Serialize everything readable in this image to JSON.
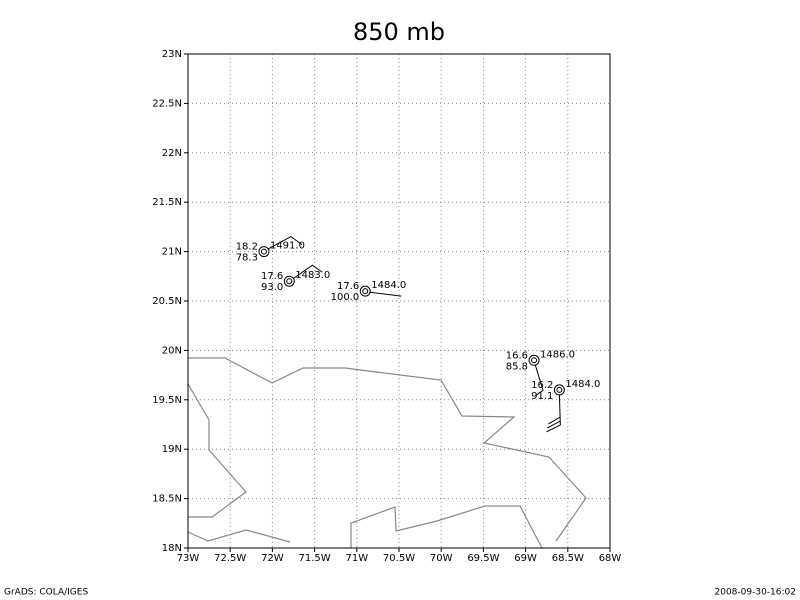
{
  "title": "850 mb",
  "map": {
    "xlim": [
      -73,
      -68
    ],
    "ylim": [
      18,
      23
    ],
    "xticks": [
      {
        "value": -73,
        "label": "73W"
      },
      {
        "value": -72.5,
        "label": "72.5W"
      },
      {
        "value": -72,
        "label": "72W"
      },
      {
        "value": -71.5,
        "label": "71.5W"
      },
      {
        "value": -71,
        "label": "71W"
      },
      {
        "value": -70.5,
        "label": "70.5W"
      },
      {
        "value": -70,
        "label": "70W"
      },
      {
        "value": -69.5,
        "label": "69.5W"
      },
      {
        "value": -69,
        "label": "69W"
      },
      {
        "value": -68.5,
        "label": "68.5W"
      },
      {
        "value": -68,
        "label": "68W"
      }
    ],
    "yticks": [
      {
        "value": 18,
        "label": "18N"
      },
      {
        "value": 18.5,
        "label": "18.5N"
      },
      {
        "value": 19,
        "label": "19N"
      },
      {
        "value": 19.5,
        "label": "19.5N"
      },
      {
        "value": 20,
        "label": "20N"
      },
      {
        "value": 20.5,
        "label": "20.5N"
      },
      {
        "value": 21,
        "label": "21N"
      },
      {
        "value": 21.5,
        "label": "21.5N"
      },
      {
        "value": 22,
        "label": "22N"
      },
      {
        "value": 22.5,
        "label": "22.5N"
      },
      {
        "value": 23,
        "label": "23N"
      }
    ],
    "grid": true
  },
  "stations": [
    {
      "lon": -72.1,
      "lat": 21.0,
      "temperature": "18.2",
      "humidity": "78.3",
      "height": "1491.0"
    },
    {
      "lon": -71.8,
      "lat": 20.7,
      "temperature": "17.6",
      "humidity": "93.0",
      "height": "1483.0"
    },
    {
      "lon": -70.9,
      "lat": 20.6,
      "temperature": "17.6",
      "humidity": "100.0",
      "height": "1484.0"
    },
    {
      "lon": -68.9,
      "lat": 19.9,
      "temperature": "16.6",
      "humidity": "85.8",
      "height": "1486.0"
    },
    {
      "lon": -68.6,
      "lat": 19.6,
      "temperature": "16.2",
      "humidity": "91.1",
      "height": "1484.0"
    }
  ],
  "footer": {
    "left": "GrADS: COLA/IGES",
    "right": "2008-09-30-16:02"
  }
}
